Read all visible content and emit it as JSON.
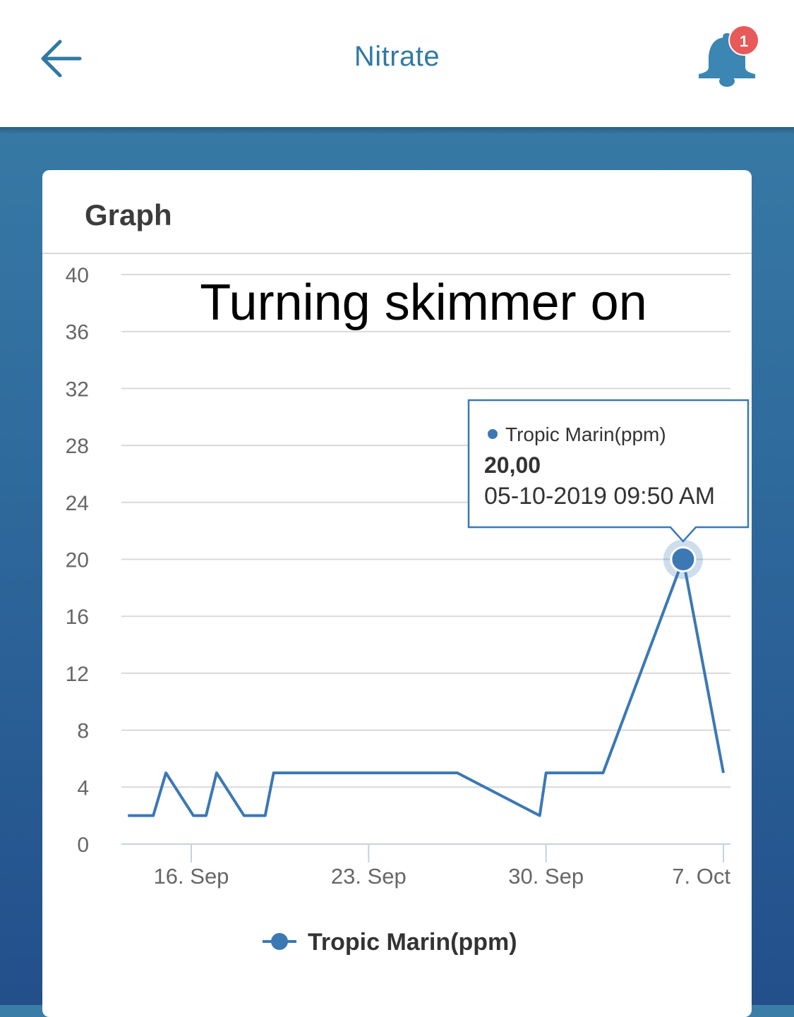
{
  "header": {
    "title": "Nitrate",
    "back_icon": "arrow-left-icon",
    "notification_icon": "bell-icon",
    "notification_count": "1"
  },
  "colors": {
    "accent": "#3179a3",
    "series": "#3b78b4",
    "badge": "#e85a5a"
  },
  "card": {
    "title": "Graph"
  },
  "chart_data": {
    "type": "line",
    "title": "",
    "annotation": "Turning skimmer on",
    "xlabel": "",
    "ylabel": "",
    "ylim": [
      0,
      40
    ],
    "yticks": [
      "0",
      "4",
      "8",
      "12",
      "16",
      "20",
      "24",
      "28",
      "32",
      "36",
      "40"
    ],
    "xticks": [
      {
        "label": "16. Sep",
        "date": "2019-09-16"
      },
      {
        "label": "23. Sep",
        "date": "2019-09-23"
      },
      {
        "label": "30. Sep",
        "date": "2019-09-30"
      },
      {
        "label": "7. Oct",
        "date": "2019-10-07"
      }
    ],
    "grid": true,
    "legend_position": "bottom-center",
    "series": [
      {
        "name": "Tropic Marin(ppm)",
        "points": [
          {
            "x": "2019-09-13 12:00",
            "y": 2
          },
          {
            "x": "2019-09-14 12:00",
            "y": 2
          },
          {
            "x": "2019-09-15 00:00",
            "y": 5
          },
          {
            "x": "2019-09-16 02:00",
            "y": 2
          },
          {
            "x": "2019-09-16 14:00",
            "y": 2
          },
          {
            "x": "2019-09-17 00:00",
            "y": 5
          },
          {
            "x": "2019-09-18 02:00",
            "y": 2
          },
          {
            "x": "2019-09-18 22:00",
            "y": 2
          },
          {
            "x": "2019-09-19 06:00",
            "y": 5
          },
          {
            "x": "2019-09-26 12:00",
            "y": 5
          },
          {
            "x": "2019-09-29 18:00",
            "y": 2
          },
          {
            "x": "2019-09-30 00:00",
            "y": 5
          },
          {
            "x": "2019-10-02 06:00",
            "y": 5
          },
          {
            "x": "2019-10-05 09:50",
            "y": 20
          },
          {
            "x": "2019-10-07 00:00",
            "y": 5
          }
        ]
      }
    ],
    "tooltip": {
      "series_name": "Tropic Marin(ppm)",
      "value": "20,00",
      "timestamp": "05-10-2019 09:50 AM",
      "point_index": 13
    }
  }
}
